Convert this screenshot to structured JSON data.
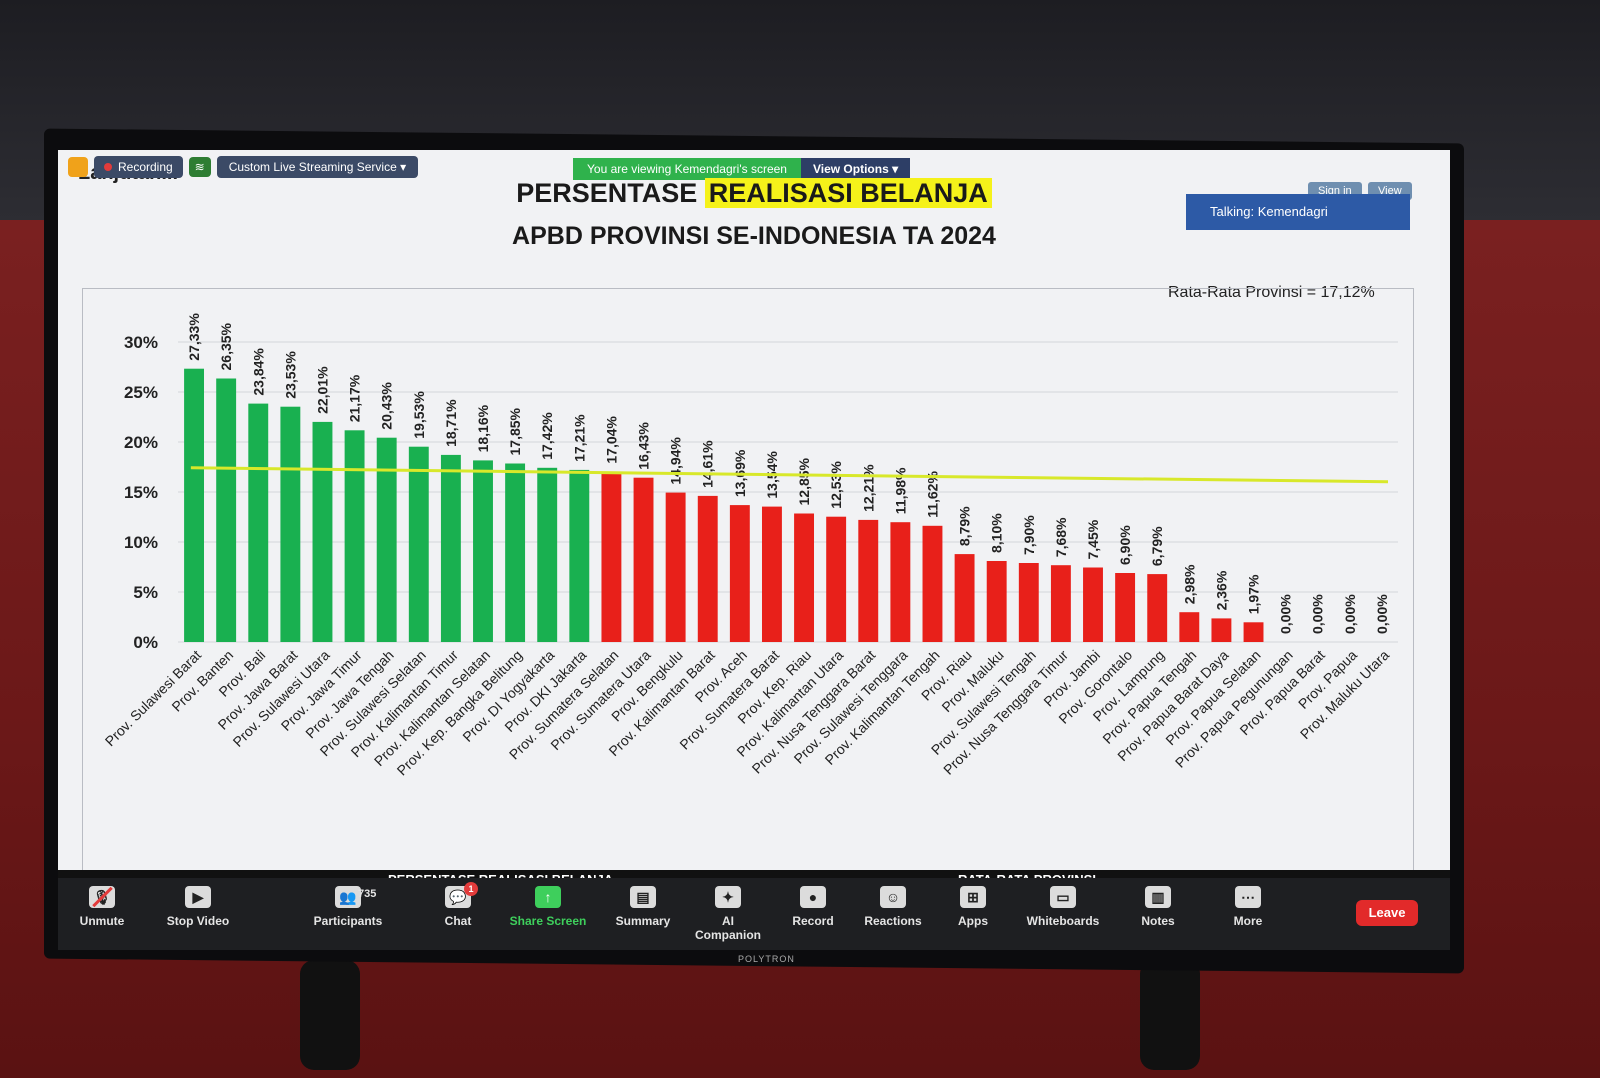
{
  "zoom": {
    "recording_label": "Recording",
    "stream_label": "Custom Live Streaming Service",
    "viewing_text": "You are viewing Kemendagri's screen",
    "view_options_label": "View Options",
    "sign_in_label": "Sign in",
    "view_label": "View",
    "talking_label": "Talking: Kemendagri",
    "participants_count": "735",
    "chat_badge": "1",
    "toolbar": [
      {
        "name": "unmute",
        "label": "Unmute",
        "icon": "mic-off-icon"
      },
      {
        "name": "stop-video",
        "label": "Stop Video",
        "icon": "video-icon"
      },
      {
        "name": "participants",
        "label": "Participants",
        "icon": "people-icon"
      },
      {
        "name": "chat",
        "label": "Chat",
        "icon": "chat-icon"
      },
      {
        "name": "share-screen",
        "label": "Share Screen",
        "icon": "share-icon"
      },
      {
        "name": "summary",
        "label": "Summary",
        "icon": "summary-icon"
      },
      {
        "name": "ai-companion",
        "label": "AI Companion",
        "icon": "sparkle-icon"
      },
      {
        "name": "record",
        "label": "Record",
        "icon": "record-icon"
      },
      {
        "name": "reactions",
        "label": "Reactions",
        "icon": "emoji-icon"
      },
      {
        "name": "apps",
        "label": "Apps",
        "icon": "apps-icon"
      },
      {
        "name": "whiteboards",
        "label": "Whiteboards",
        "icon": "whiteboard-icon"
      },
      {
        "name": "notes",
        "label": "Notes",
        "icon": "notes-icon"
      },
      {
        "name": "more",
        "label": "More",
        "icon": "more-icon"
      }
    ],
    "leave_label": "Leave"
  },
  "slide": {
    "corner_text": "Lanjutan...",
    "title_part1": "PERSENTASE ",
    "title_highlight": "REALISASI BELANJA",
    "title_line2": "APBD PROVINSI SE-INDONESIA TA 2024",
    "average_note": "Rata-Rata Provinsi = 17,12%",
    "bottom_strip_1": "PERSENTASE REALISASI BELANJA",
    "bottom_strip_2": "RATA-RATA PROVINSI"
  },
  "brand": "POLYTRON",
  "colors": {
    "above": "#19b050",
    "below": "#e8201a",
    "average_line": "#d8e82a"
  },
  "chart_data": {
    "type": "bar",
    "ylim": [
      0,
      30
    ],
    "yticks": [
      "0%",
      "5%",
      "10%",
      "15%",
      "20%",
      "25%",
      "30%"
    ],
    "average": 17.12,
    "categories": [
      "Prov. Sulawesi Barat",
      "Prov. Banten",
      "Prov. Bali",
      "Prov. Jawa Barat",
      "Prov. Sulawesi Utara",
      "Prov. Jawa Timur",
      "Prov. Jawa Tengah",
      "Prov. Sulawesi Selatan",
      "Prov. Kalimantan Timur",
      "Prov. Kalimantan Selatan",
      "Prov. Kep. Bangka Belitung",
      "Prov. DI Yogyakarta",
      "Prov. DKI Jakarta",
      "Prov. Sumatera Selatan",
      "Prov. Sumatera Utara",
      "Prov. Bengkulu",
      "Prov. Kalimantan Barat",
      "Prov. Aceh",
      "Prov. Sumatera Barat",
      "Prov. Kep. Riau",
      "Prov. Kalimantan Utara",
      "Prov. Nusa Tenggara Barat",
      "Prov. Sulawesi Tenggara",
      "Prov. Kalimantan Tengah",
      "Prov. Riau",
      "Prov. Maluku",
      "Prov. Sulawesi Tengah",
      "Prov. Nusa Tenggara Timur",
      "Prov. Jambi",
      "Prov. Gorontalo",
      "Prov. Lampung",
      "Prov. Papua Tengah",
      "Prov. Papua Barat Daya",
      "Prov. Papua Selatan",
      "Prov. Papua Pegunungan",
      "Prov. Papua Barat",
      "Prov. Papua",
      "Prov. Maluku Utara"
    ],
    "values": [
      27.33,
      26.35,
      23.84,
      23.53,
      22.01,
      21.17,
      20.43,
      19.53,
      18.71,
      18.16,
      17.85,
      17.42,
      17.21,
      17.04,
      16.43,
      14.94,
      14.61,
      13.69,
      13.54,
      12.85,
      12.53,
      12.21,
      11.98,
      11.62,
      8.79,
      8.1,
      7.9,
      7.68,
      7.45,
      6.9,
      6.79,
      2.98,
      2.36,
      1.97,
      0.0,
      0.0,
      0.0,
      0.0
    ],
    "value_labels": [
      "27,33%",
      "26,35%",
      "23,84%",
      "23,53%",
      "22,01%",
      "21,17%",
      "20,43%",
      "19,53%",
      "18,71%",
      "18,16%",
      "17,85%",
      "17,42%",
      "17,21%",
      "17,04%",
      "16,43%",
      "14,94%",
      "14,61%",
      "13,69%",
      "13,54%",
      "12,85%",
      "12,53%",
      "12,21%",
      "11,98%",
      "11,62%",
      "8,79%",
      "8,10%",
      "7,90%",
      "7,68%",
      "7,45%",
      "6,90%",
      "6,79%",
      "2,98%",
      "2,36%",
      "1,97%",
      "0,00%",
      "0,00%",
      "0,00%",
      "0,00%"
    ],
    "above_count": 13
  }
}
